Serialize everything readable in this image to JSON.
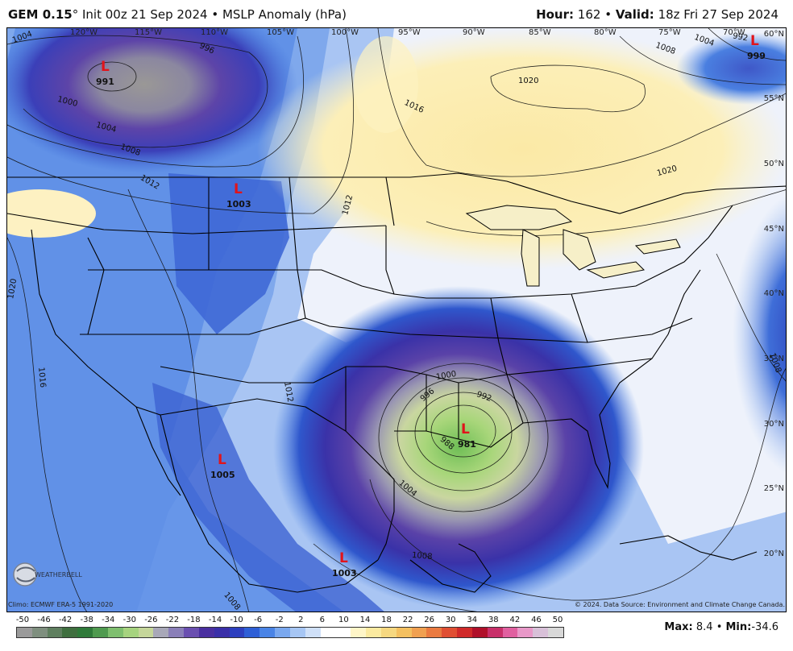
{
  "header": {
    "model": "GEM 0.15",
    "degree": "°",
    "init": "Init 00z 21 Sep 2024",
    "product": "MSLP Anomaly (hPa)",
    "hour_label": "Hour:",
    "hour_value": "162",
    "valid_label": "Valid:",
    "valid_value": "18z Fri 27 Sep 2024",
    "separator": "•"
  },
  "longitudes": [
    "120°W",
    "115°W",
    "110°W",
    "105°W",
    "100°W",
    "95°W",
    "90°W",
    "85°W",
    "80°W",
    "75°W",
    "70°W"
  ],
  "latitudes": [
    "60°N",
    "55°N",
    "50°N",
    "45°N",
    "40°N",
    "35°N",
    "30°N",
    "25°N",
    "20°N"
  ],
  "lows": [
    {
      "marker": "L",
      "value": "991"
    },
    {
      "marker": "L",
      "value": "1003"
    },
    {
      "marker": "L",
      "value": "981"
    },
    {
      "marker": "L",
      "value": "1005"
    },
    {
      "marker": "L",
      "value": "1003"
    },
    {
      "marker": "L",
      "value": "999"
    }
  ],
  "contour_labels": [
    "1004",
    "996",
    "1000",
    "1004",
    "1008",
    "1012",
    "1012",
    "1016",
    "1020",
    "1020",
    "1008",
    "1004",
    "1016",
    "1020",
    "1012",
    "1000",
    "996",
    "992",
    "988",
    "1004",
    "1008",
    "1008",
    "1008",
    "992"
  ],
  "footer": {
    "climo": "Climo: ECMWF ERA-5 1991-2020",
    "copyright": "© 2024. Data Source: Environment and Climate Change Canada."
  },
  "colorbar": {
    "ticks": [
      "-50",
      "-46",
      "-42",
      "-38",
      "-34",
      "-30",
      "-26",
      "-22",
      "-18",
      "-14",
      "-10",
      "-6",
      "-2",
      "2",
      "6",
      "10",
      "14",
      "18",
      "22",
      "26",
      "30",
      "34",
      "38",
      "42",
      "46",
      "50"
    ],
    "colors": [
      "#9a9a9a",
      "#7f8f7f",
      "#5f7f5f",
      "#3f6f3f",
      "#2f7a3a",
      "#4f9a4f",
      "#7fbf6f",
      "#a6d37f",
      "#c5d69a",
      "#a8a8b8",
      "#8a7fb8",
      "#6a4fb0",
      "#4a2fa0",
      "#3a2fa8",
      "#2d3fbf",
      "#2e5fd6",
      "#4a84e6",
      "#7aa8ef",
      "#a6c6f4",
      "#cfe0f8",
      "#ffffff",
      "#ffffff",
      "#fff6c8",
      "#fbeaa0",
      "#f6d880",
      "#f4c060",
      "#f0a050",
      "#ea7a40",
      "#e04f33",
      "#d02a2a",
      "#b0102a",
      "#c8306a",
      "#e060a0",
      "#e898c8",
      "#d8c0d8",
      "#d8d8d8"
    ],
    "max_label": "Max:",
    "max_value": "8.4",
    "min_label": "Min:",
    "min_value": "-34.6"
  },
  "logo_text": "WEATHERBELL"
}
